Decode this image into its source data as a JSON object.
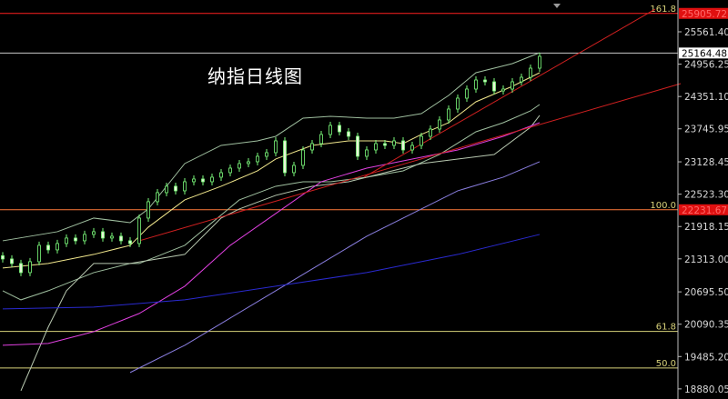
{
  "chart_data": {
    "type": "candlestick",
    "title": "纳指日线图",
    "ylim": [
      18700,
      26150
    ],
    "y_ticks": [
      "25561.40",
      "24956.25",
      "24351.10",
      "23745.95",
      "23128.45",
      "22523.30",
      "21918.15",
      "21313.00",
      "20695.50",
      "20090.35",
      "19485.20",
      "18880.05"
    ],
    "current_price": {
      "value": 25164.48,
      "label": "25164.48",
      "color": "#ffffff",
      "line_color": "#c8c8c8"
    },
    "horizontal_levels": [
      {
        "fib": "161.8",
        "price": 25905.72,
        "label": "25905.72",
        "color": "#ff2020"
      },
      {
        "fib": "100.0",
        "price": 22231.67,
        "label": "22231.67",
        "color": "#ff7a3a"
      },
      {
        "fib": "61.8",
        "price": 19955,
        "color": "#d8d27a"
      },
      {
        "fib": "50.0",
        "price": 19270,
        "color": "#d8d27a"
      }
    ],
    "candle_color": "#7cfc7c",
    "close": [
      21311,
      21226,
      21056,
      21260,
      21566,
      21481,
      21600,
      21702,
      21651,
      21770,
      21821,
      21702,
      21736,
      21651,
      21600,
      22076,
      22382,
      22552,
      22671,
      22586,
      22756,
      22807,
      22756,
      22841,
      22926,
      23011,
      23096,
      23130,
      23232,
      23300,
      23521,
      22926,
      23062,
      23351,
      23470,
      23640,
      23810,
      23691,
      23606,
      23232,
      23351,
      23470,
      23436,
      23521,
      23351,
      23436,
      23606,
      23742,
      23912,
      24116,
      24320,
      24490,
      24660,
      24626,
      24456,
      24490,
      24626,
      24711,
      24881,
      25102
    ],
    "lines": [
      {
        "kind": "bollinger-upper",
        "color": "#9fbf9f",
        "points": [
          [
            0,
            21651
          ],
          [
            6,
            21821
          ],
          [
            10,
            22076
          ],
          [
            14,
            21991
          ],
          [
            16,
            22246
          ],
          [
            20,
            23096
          ],
          [
            24,
            23436
          ],
          [
            28,
            23521
          ],
          [
            30,
            23606
          ],
          [
            33,
            23946
          ],
          [
            36,
            23980
          ],
          [
            40,
            23946
          ],
          [
            43,
            23946
          ],
          [
            46,
            24031
          ],
          [
            49,
            24371
          ],
          [
            52,
            24796
          ],
          [
            56,
            24966
          ],
          [
            59,
            25170
          ]
        ]
      },
      {
        "kind": "bollinger-middle",
        "color": "#f0e68c",
        "points": [
          [
            0,
            21141
          ],
          [
            5,
            21226
          ],
          [
            10,
            21396
          ],
          [
            14,
            21566
          ],
          [
            16,
            21906
          ],
          [
            20,
            22416
          ],
          [
            24,
            22671
          ],
          [
            28,
            22960
          ],
          [
            30,
            23181
          ],
          [
            34,
            23436
          ],
          [
            38,
            23521
          ],
          [
            42,
            23521
          ],
          [
            44,
            23470
          ],
          [
            46,
            23640
          ],
          [
            49,
            23861
          ],
          [
            52,
            24252
          ],
          [
            56,
            24541
          ],
          [
            59,
            24796
          ]
        ]
      },
      {
        "kind": "bollinger-lower",
        "color": "#9fbf9f",
        "points": [
          [
            0,
            20716
          ],
          [
            2,
            20546
          ],
          [
            5,
            20716
          ],
          [
            10,
            21056
          ],
          [
            14,
            21226
          ],
          [
            15,
            21226
          ],
          [
            20,
            21566
          ],
          [
            23,
            21991
          ],
          [
            26,
            22416
          ],
          [
            30,
            22671
          ],
          [
            33,
            22756
          ],
          [
            36,
            22756
          ],
          [
            40,
            22841
          ],
          [
            44,
            22960
          ],
          [
            48,
            23266
          ],
          [
            52,
            23691
          ],
          [
            55,
            23861
          ],
          [
            58,
            24082
          ],
          [
            59,
            24201
          ]
        ]
      },
      {
        "kind": "ma-long",
        "color": "#b8c8b0",
        "points": [
          [
            2,
            18846
          ],
          [
            5,
            20036
          ],
          [
            7,
            20716
          ],
          [
            10,
            21226
          ],
          [
            14,
            21226
          ],
          [
            20,
            21396
          ],
          [
            24,
            22076
          ],
          [
            26,
            22246
          ],
          [
            30,
            22501
          ],
          [
            34,
            22671
          ],
          [
            38,
            22756
          ],
          [
            42,
            22926
          ],
          [
            46,
            23096
          ],
          [
            50,
            23181
          ],
          [
            54,
            23266
          ],
          [
            58,
            23776
          ],
          [
            59,
            23997
          ]
        ]
      },
      {
        "kind": "ma-magenta",
        "color": "#e040e0",
        "points": [
          [
            0,
            19696
          ],
          [
            5,
            19730
          ],
          [
            10,
            19951
          ],
          [
            15,
            20291
          ],
          [
            20,
            20801
          ],
          [
            25,
            21566
          ],
          [
            30,
            22161
          ],
          [
            35,
            22756
          ],
          [
            40,
            23011
          ],
          [
            45,
            23181
          ],
          [
            50,
            23351
          ],
          [
            55,
            23606
          ],
          [
            59,
            23861
          ]
        ]
      },
      {
        "kind": "ma-lavender",
        "color": "#8a7ee0",
        "points": [
          [
            14,
            19186
          ],
          [
            20,
            19696
          ],
          [
            25,
            20206
          ],
          [
            30,
            20716
          ],
          [
            35,
            21226
          ],
          [
            40,
            21736
          ],
          [
            45,
            22161
          ],
          [
            50,
            22586
          ],
          [
            55,
            22841
          ],
          [
            59,
            23130
          ]
        ]
      },
      {
        "kind": "ma-blue",
        "color": "#2a2ad0",
        "points": [
          [
            0,
            20376
          ],
          [
            10,
            20410
          ],
          [
            20,
            20546
          ],
          [
            30,
            20801
          ],
          [
            40,
            21056
          ],
          [
            50,
            21396
          ],
          [
            59,
            21770
          ]
        ]
      },
      {
        "kind": "trendline",
        "color": "#d02020",
        "points": [
          [
            15,
            21651
          ],
          [
            74.5,
            24592
          ]
        ]
      },
      {
        "kind": "trendline",
        "color": "#d02020",
        "points": [
          [
            39.7,
            22841
          ],
          [
            71.7,
            25986
          ]
        ]
      }
    ]
  }
}
